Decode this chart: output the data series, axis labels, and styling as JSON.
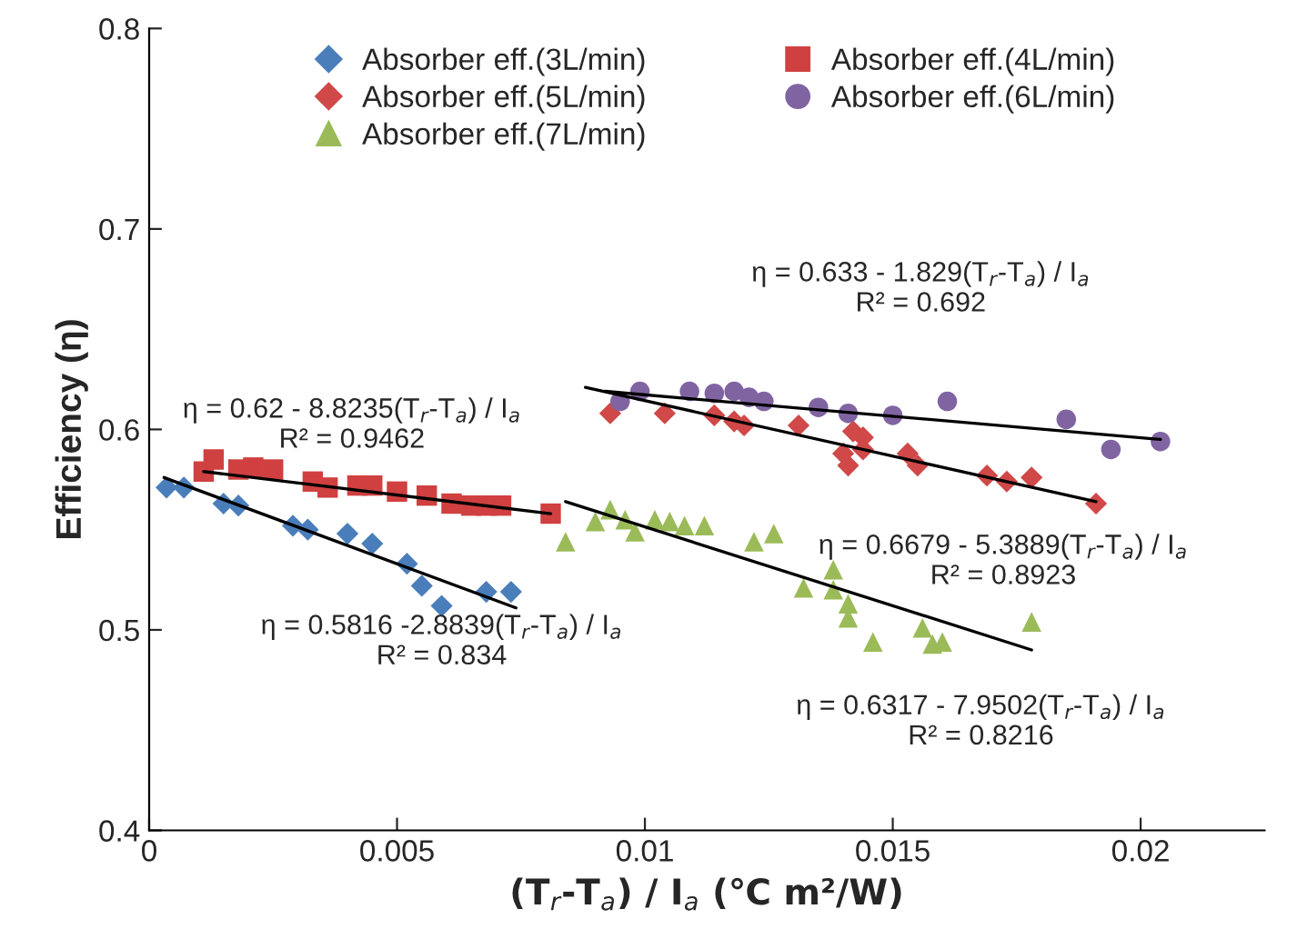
{
  "chart_data": {
    "type": "scatter",
    "xlabel": "(T$_{r}$-T$_{a}$) / I$_{a}$ (℃ m²/W)",
    "ylabel": "Efficiency (η)",
    "xlim": [
      0,
      0.0225
    ],
    "xticks": [
      0,
      0.005,
      0.01,
      0.015,
      0.02
    ],
    "ylim": [
      0.4,
      0.8
    ],
    "yticks": [
      0.4,
      0.5,
      0.6,
      0.7,
      0.8
    ],
    "grid": false,
    "legend": "top",
    "series": [
      {
        "name": "Absorber eff.(3L/min)",
        "color": "#4a7ebb",
        "marker": "diamond",
        "x": [
          0.00035,
          0.0007,
          0.0015,
          0.0018,
          0.0029,
          0.0032,
          0.004,
          0.0045,
          0.0052,
          0.0055,
          0.0059,
          0.0068,
          0.0073
        ],
        "values": [
          0.571,
          0.571,
          0.563,
          0.562,
          0.552,
          0.55,
          0.548,
          0.543,
          0.533,
          0.522,
          0.512,
          0.519,
          0.519
        ]
      },
      {
        "name": "Absorber eff.(4L/min)",
        "color": "#d04040",
        "marker": "square",
        "x": [
          0.0011,
          0.0013,
          0.0018,
          0.0021,
          0.0025,
          0.0033,
          0.0036,
          0.0042,
          0.0045,
          0.005,
          0.0056,
          0.0061,
          0.0065,
          0.0068,
          0.0071,
          0.0081
        ],
        "values": [
          0.579,
          0.585,
          0.58,
          0.581,
          0.58,
          0.574,
          0.571,
          0.572,
          0.572,
          0.569,
          0.567,
          0.563,
          0.562,
          0.562,
          0.562,
          0.558
        ]
      },
      {
        "name": "Absorber eff.(5L/min)",
        "color": "#d04848",
        "marker": "diamond",
        "x": [
          0.0093,
          0.0104,
          0.0114,
          0.0118,
          0.012,
          0.0131,
          0.0142,
          0.0144,
          0.014,
          0.0141,
          0.0144,
          0.0153,
          0.0155,
          0.0169,
          0.0173,
          0.0178,
          0.0191
        ],
        "values": [
          0.608,
          0.608,
          0.607,
          0.604,
          0.602,
          0.602,
          0.599,
          0.596,
          0.588,
          0.582,
          0.59,
          0.588,
          0.582,
          0.577,
          0.574,
          0.576,
          0.563
        ]
      },
      {
        "name": "Absorber eff.(6L/min)",
        "color": "#8064a2",
        "marker": "circle",
        "x": [
          0.0095,
          0.0099,
          0.0109,
          0.0114,
          0.0118,
          0.0121,
          0.0124,
          0.0135,
          0.0141,
          0.015,
          0.0161,
          0.0185,
          0.0194,
          0.0204
        ],
        "values": [
          0.614,
          0.619,
          0.619,
          0.618,
          0.619,
          0.616,
          0.614,
          0.611,
          0.608,
          0.607,
          0.614,
          0.605,
          0.59,
          0.594
        ]
      },
      {
        "name": "Absorber eff.(7L/min)",
        "color": "#9bbb59",
        "marker": "triangle",
        "x": [
          0.0084,
          0.009,
          0.0093,
          0.0096,
          0.0098,
          0.0102,
          0.0105,
          0.0108,
          0.0112,
          0.0122,
          0.0126,
          0.0132,
          0.0138,
          0.0138,
          0.0141,
          0.0141,
          0.0146,
          0.0156,
          0.0158,
          0.016,
          0.0178
        ],
        "values": [
          0.544,
          0.554,
          0.56,
          0.555,
          0.549,
          0.555,
          0.554,
          0.552,
          0.552,
          0.544,
          0.548,
          0.521,
          0.53,
          0.52,
          0.513,
          0.506,
          0.494,
          0.501,
          0.493,
          0.494,
          0.504
        ]
      },
      {
        "type": "line",
        "color": "#000000",
        "marker": "none",
        "x": [
          0.0003,
          0.0074
        ],
        "values": [
          0.576,
          0.511
        ]
      },
      {
        "type": "line",
        "color": "#000000",
        "marker": "none",
        "x": [
          0.0011,
          0.0081
        ],
        "values": [
          0.579,
          0.558
        ]
      },
      {
        "type": "line",
        "color": "#000000",
        "marker": "none",
        "x": [
          0.0088,
          0.0191
        ],
        "values": [
          0.621,
          0.564
        ]
      },
      {
        "type": "line",
        "color": "#000000",
        "marker": "none",
        "x": [
          0.0092,
          0.0204
        ],
        "values": [
          0.619,
          0.595
        ]
      },
      {
        "type": "line",
        "color": "#000000",
        "marker": "none",
        "x": [
          0.0084,
          0.0178
        ],
        "values": [
          0.564,
          0.49
        ]
      }
    ],
    "annotations": [
      "η = 0.62 - 8.8235(T$_{r}$-T$_{a}$) / I$_{a}$\nR² = 0.9462",
      "η = 0.5816 -2.8839(T$_{r}$-T$_{a}$) / I$_{a}$\nR² = 0.834",
      "η = 0.633 - 1.829(T$_{r}$-T$_{a}$) / I$_{a}$\nR² = 0.692",
      "η = 0.6679 - 5.3889(T$_{r}$-T$_{a}$) / I$_{a}$\nR² = 0.8923",
      "η = 0.6317 - 7.9502(T$_{r}$-T$_{a}$) / I$_{a}$\nR² = 0.8216"
    ]
  }
}
